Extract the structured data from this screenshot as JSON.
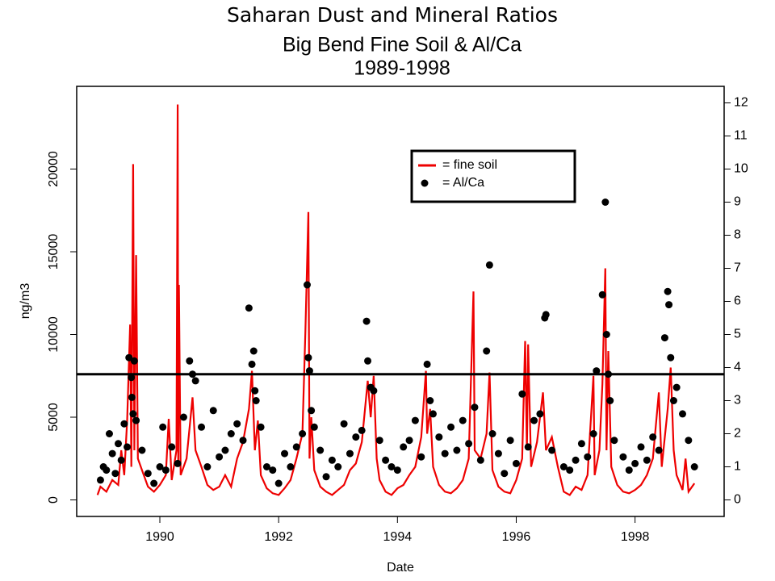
{
  "chart_data": {
    "type": "line",
    "title": "Saharan Dust and Mineral Ratios",
    "subtitle": [
      "Big Bend Fine Soil & Al/Ca",
      "1989-1998"
    ],
    "xlabel": "Date",
    "ylabel": "ng/m3",
    "xlim": [
      1988.6,
      1999.5
    ],
    "xticks": [
      1990,
      1992,
      1994,
      1996,
      1998
    ],
    "ylim": [
      -1000,
      25000
    ],
    "yticks": [
      0,
      5000,
      10000,
      15000,
      20000
    ],
    "y2lim": [
      -0.5,
      12.5
    ],
    "y2ticks": [
      0,
      1,
      2,
      3,
      4,
      5,
      6,
      7,
      8,
      9,
      10,
      11,
      12
    ],
    "hline": {
      "value": 3.8,
      "axis": "y2"
    },
    "legend": "top-right",
    "series": [
      {
        "name": "= fine soil",
        "type": "line",
        "color": "#ee0000",
        "x": [
          1988.95,
          1989.0,
          1989.1,
          1989.2,
          1989.3,
          1989.35,
          1989.4,
          1989.45,
          1989.5,
          1989.52,
          1989.55,
          1989.57,
          1989.6,
          1989.63,
          1989.7,
          1989.8,
          1989.9,
          1990.0,
          1990.1,
          1990.15,
          1990.2,
          1990.28,
          1990.3,
          1990.31,
          1990.32,
          1990.35,
          1990.45,
          1990.55,
          1990.6,
          1990.7,
          1990.8,
          1990.9,
          1991.0,
          1991.1,
          1991.2,
          1991.3,
          1991.4,
          1991.5,
          1991.55,
          1991.6,
          1991.65,
          1991.7,
          1991.8,
          1991.9,
          1992.0,
          1992.1,
          1992.2,
          1992.3,
          1992.4,
          1992.45,
          1992.5,
          1992.52,
          1992.55,
          1992.6,
          1992.7,
          1992.8,
          1992.9,
          1993.0,
          1993.1,
          1993.2,
          1993.3,
          1993.4,
          1993.5,
          1993.55,
          1993.6,
          1993.65,
          1993.7,
          1993.8,
          1993.9,
          1994.0,
          1994.1,
          1994.2,
          1994.3,
          1994.4,
          1994.48,
          1994.5,
          1994.55,
          1994.6,
          1994.7,
          1994.8,
          1994.9,
          1995.0,
          1995.1,
          1995.2,
          1995.28,
          1995.3,
          1995.4,
          1995.5,
          1995.55,
          1995.6,
          1995.7,
          1995.8,
          1995.9,
          1996.0,
          1996.1,
          1996.15,
          1996.18,
          1996.2,
          1996.25,
          1996.35,
          1996.45,
          1996.5,
          1996.6,
          1996.7,
          1996.8,
          1996.9,
          1997.0,
          1997.1,
          1997.2,
          1997.3,
          1997.32,
          1997.4,
          1997.45,
          1997.5,
          1997.52,
          1997.55,
          1997.6,
          1997.7,
          1997.8,
          1997.9,
          1998.0,
          1998.1,
          1998.2,
          1998.3,
          1998.4,
          1998.45,
          1998.55,
          1998.6,
          1998.65,
          1998.7,
          1998.8,
          1998.85,
          1998.9,
          1999.0
        ],
        "values": [
          300,
          800,
          500,
          1200,
          900,
          3000,
          1500,
          4800,
          10600,
          2000,
          20300,
          3000,
          14800,
          2500,
          1800,
          800,
          500,
          900,
          1500,
          4900,
          1200,
          3000,
          23900,
          2000,
          13000,
          1500,
          2500,
          6200,
          3000,
          2000,
          900,
          600,
          800,
          1500,
          800,
          2500,
          3500,
          5500,
          7800,
          3000,
          4800,
          1500,
          700,
          400,
          300,
          700,
          1200,
          2500,
          4000,
          10200,
          17400,
          2500,
          5000,
          1800,
          800,
          500,
          300,
          600,
          900,
          1800,
          2200,
          3500,
          7200,
          5000,
          7500,
          2500,
          1200,
          500,
          300,
          700,
          900,
          1500,
          2000,
          3800,
          7800,
          4000,
          5500,
          2000,
          900,
          500,
          400,
          700,
          1200,
          2500,
          12600,
          3000,
          2500,
          4000,
          7700,
          1800,
          800,
          500,
          400,
          1200,
          2500,
          9600,
          3000,
          9400,
          2000,
          3500,
          6500,
          3000,
          3800,
          2000,
          500,
          300,
          800,
          600,
          1500,
          7500,
          1500,
          3000,
          7000,
          14000,
          3000,
          9000,
          2000,
          900,
          500,
          400,
          600,
          900,
          1500,
          2500,
          6500,
          2000,
          5500,
          8000,
          3000,
          1500,
          600,
          2500,
          500,
          1000
        ]
      },
      {
        "name": "= Al/Ca",
        "type": "scatter",
        "axis": "y2",
        "color": "#000000",
        "x": [
          1989.0,
          1989.05,
          1989.1,
          1989.15,
          1989.2,
          1989.25,
          1989.3,
          1989.35,
          1989.4,
          1989.45,
          1989.48,
          1989.52,
          1989.53,
          1989.55,
          1989.57,
          1989.6,
          1989.7,
          1989.8,
          1989.9,
          1990.0,
          1990.05,
          1990.1,
          1990.2,
          1990.3,
          1990.4,
          1990.5,
          1990.55,
          1990.6,
          1990.7,
          1990.8,
          1990.9,
          1991.0,
          1991.1,
          1991.2,
          1991.3,
          1991.4,
          1991.5,
          1991.55,
          1991.58,
          1991.6,
          1991.62,
          1991.7,
          1991.8,
          1991.9,
          1992.0,
          1992.1,
          1992.2,
          1992.3,
          1992.4,
          1992.48,
          1992.5,
          1992.52,
          1992.55,
          1992.6,
          1992.7,
          1992.8,
          1992.9,
          1993.0,
          1993.1,
          1993.2,
          1993.3,
          1993.4,
          1993.48,
          1993.5,
          1993.55,
          1993.6,
          1993.7,
          1993.8,
          1993.9,
          1994.0,
          1994.1,
          1994.2,
          1994.3,
          1994.4,
          1994.5,
          1994.55,
          1994.6,
          1994.7,
          1994.8,
          1994.9,
          1995.0,
          1995.1,
          1995.2,
          1995.3,
          1995.4,
          1995.5,
          1995.55,
          1995.6,
          1995.7,
          1995.8,
          1995.9,
          1996.0,
          1996.1,
          1996.2,
          1996.3,
          1996.4,
          1996.48,
          1996.5,
          1996.6,
          1996.8,
          1996.9,
          1997.0,
          1997.1,
          1997.2,
          1997.3,
          1997.35,
          1997.45,
          1997.5,
          1997.52,
          1997.55,
          1997.58,
          1997.65,
          1997.8,
          1997.9,
          1998.0,
          1998.1,
          1998.2,
          1998.3,
          1998.4,
          1998.5,
          1998.55,
          1998.57,
          1998.6,
          1998.65,
          1998.7,
          1998.8,
          1998.9,
          1999.0
        ],
        "values": [
          0.6,
          1.0,
          0.9,
          2.0,
          1.4,
          0.8,
          1.7,
          1.2,
          2.3,
          1.6,
          4.3,
          3.7,
          3.1,
          2.6,
          4.2,
          2.4,
          1.5,
          0.8,
          0.5,
          1.0,
          2.2,
          0.9,
          1.6,
          1.1,
          2.5,
          4.2,
          3.8,
          3.6,
          2.2,
          1.0,
          2.7,
          1.3,
          1.5,
          2.0,
          2.3,
          1.8,
          5.8,
          4.1,
          4.5,
          3.3,
          3.0,
          2.2,
          1.0,
          0.9,
          0.5,
          1.4,
          1.0,
          1.6,
          2.0,
          6.5,
          4.3,
          3.9,
          2.7,
          2.2,
          1.5,
          0.7,
          1.2,
          1.0,
          2.3,
          1.4,
          1.9,
          2.1,
          5.4,
          4.2,
          3.4,
          3.3,
          1.8,
          1.2,
          1.0,
          0.9,
          1.6,
          1.8,
          2.4,
          1.3,
          4.1,
          3.0,
          2.6,
          1.9,
          1.4,
          2.2,
          1.5,
          2.4,
          1.7,
          2.8,
          1.2,
          4.5,
          7.1,
          2.0,
          1.4,
          0.8,
          1.8,
          1.1,
          3.2,
          1.6,
          2.4,
          2.6,
          5.5,
          5.6,
          1.5,
          1.0,
          0.9,
          1.2,
          1.7,
          1.3,
          2.0,
          3.9,
          6.2,
          9.0,
          5.0,
          3.8,
          3.0,
          1.8,
          1.3,
          0.9,
          1.1,
          1.6,
          1.2,
          1.9,
          1.5,
          4.9,
          6.3,
          5.9,
          4.3,
          3.0,
          3.4,
          2.6,
          1.8,
          1.0
        ]
      }
    ]
  }
}
